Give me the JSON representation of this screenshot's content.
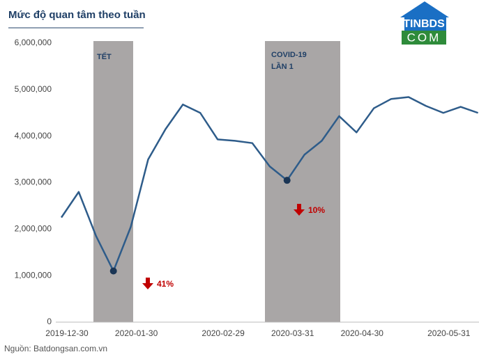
{
  "chart_data": {
    "type": "line",
    "title": "Mức độ quan tâm theo tuần",
    "source": "Nguồn: Batdongsan.com.vn",
    "logo": {
      "top": "TINBDS",
      "bottom": "COM"
    },
    "categories": [
      "2019-12-30",
      null,
      null,
      null,
      "2020-01-30",
      null,
      null,
      null,
      null,
      "2020-02-29",
      null,
      null,
      null,
      "2020-03-31",
      null,
      null,
      null,
      "2020-04-30",
      null,
      null,
      null,
      null,
      "2020-05-31",
      null,
      null
    ],
    "series": [
      {
        "name": "Mức độ quan tâm",
        "color": "#2e5c8a",
        "values": [
          2250000,
          2800000,
          1850000,
          1100000,
          2050000,
          3500000,
          4150000,
          4680000,
          4500000,
          3930000,
          3900000,
          3850000,
          3350000,
          3050000,
          3600000,
          3900000,
          4430000,
          4080000,
          4600000,
          4800000,
          4840000,
          4650000,
          4500000,
          4630000,
          4500000
        ]
      }
    ],
    "ylim": [
      0,
      6000000
    ],
    "yticks": [
      0,
      {
        "value": 1000000,
        "label": "1,000,000"
      },
      {
        "value": 2000000,
        "label": "2,000,000"
      },
      {
        "value": 3000000,
        "label": "3,000,000"
      },
      {
        "value": 4000000,
        "label": "4,000,000"
      },
      {
        "value": 5000000,
        "label": "5,000,000"
      },
      {
        "value": 6000000,
        "label": "6,000,000"
      }
    ],
    "bands": [
      {
        "label": "TẾT"
      },
      {
        "label_lines": [
          "COVID-19",
          "LẦN 1"
        ]
      }
    ],
    "annotations": [
      {
        "text": "41%"
      },
      {
        "text": "10%"
      }
    ]
  }
}
